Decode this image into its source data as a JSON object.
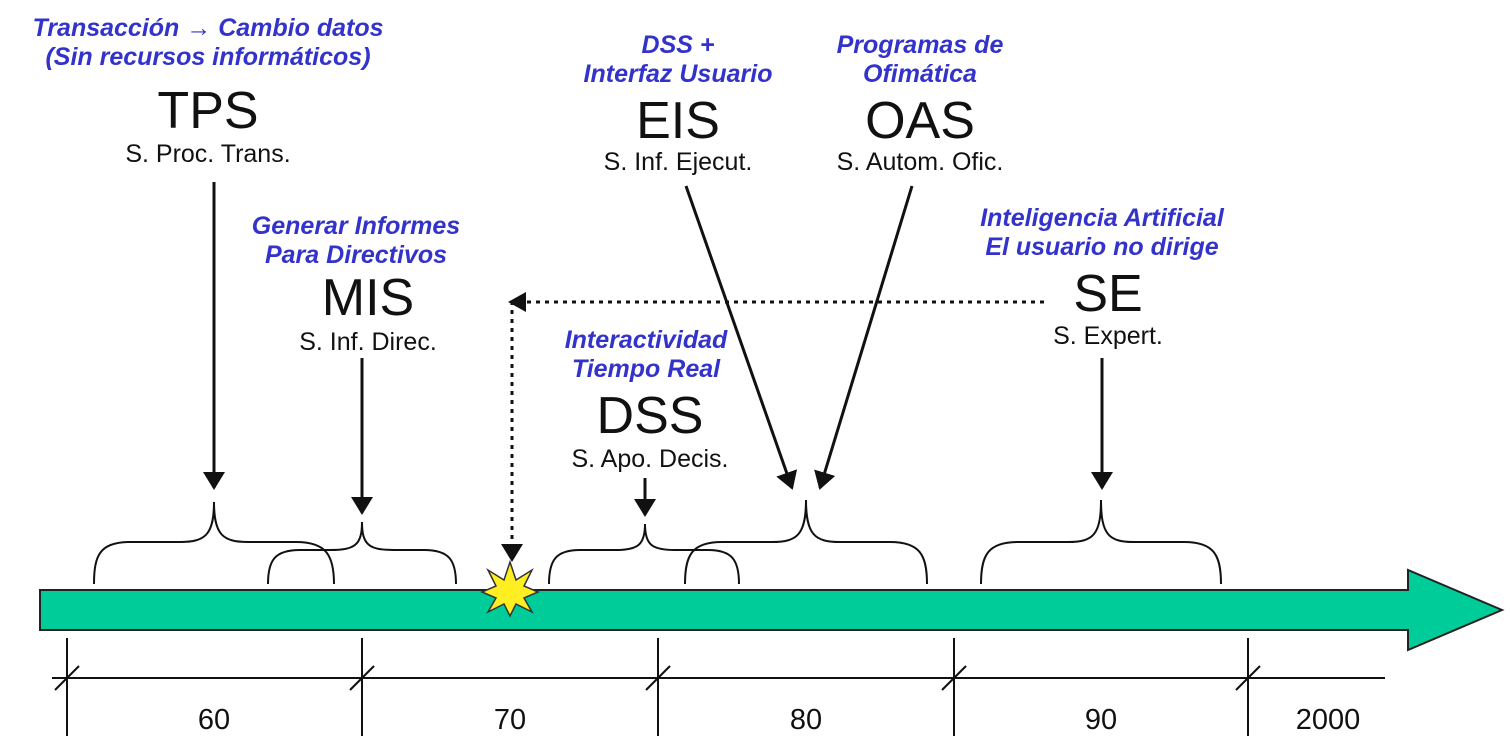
{
  "colors": {
    "note_text": "#3333cc",
    "timeline_fill": "#00cc99",
    "star_fill": "#ffee22"
  },
  "systems": {
    "tps": {
      "note": [
        "Transacción → Cambio datos",
        "(Sin recursos informáticos)"
      ],
      "acronym": "TPS",
      "subtitle": "S. Proc. Trans."
    },
    "mis": {
      "note": [
        "Generar Informes",
        "Para Directivos"
      ],
      "acronym": "MIS",
      "subtitle": "S. Inf. Direc."
    },
    "dss": {
      "note": [
        "Interactividad",
        "Tiempo Real"
      ],
      "acronym": "DSS",
      "subtitle": "S. Apo. Decis."
    },
    "eis": {
      "note": [
        "DSS +",
        "Interfaz Usuario"
      ],
      "acronym": "EIS",
      "subtitle": "S. Inf. Ejecut."
    },
    "oas": {
      "note": [
        "Programas de",
        "Ofimática"
      ],
      "acronym": "OAS",
      "subtitle": "S. Autom. Ofic."
    },
    "se": {
      "note": [
        "Inteligencia Artificial",
        "El usuario no dirige"
      ],
      "acronym": "SE",
      "subtitle": "S. Expert."
    }
  },
  "timeline": {
    "eras": [
      "60",
      "70",
      "80",
      "90",
      "2000"
    ]
  }
}
